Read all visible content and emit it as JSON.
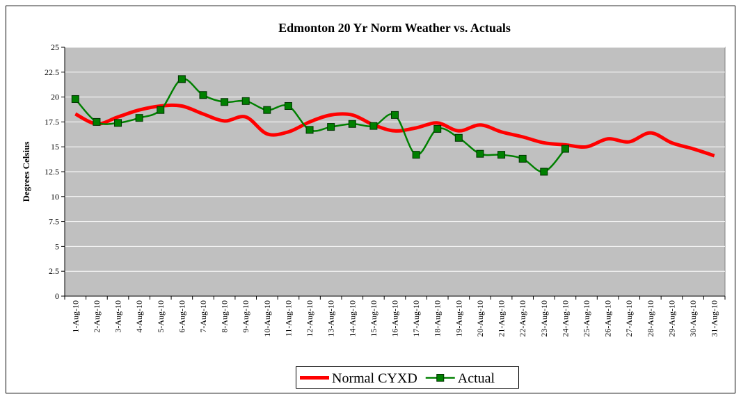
{
  "chart_data": {
    "type": "line",
    "title": "Edmonton 20 Yr Norm Weather vs. Actuals",
    "y_label": "Degrees Celsius",
    "categories": [
      "1-Aug-10",
      "2-Aug-10",
      "3-Aug-10",
      "4-Aug-10",
      "5-Aug-10",
      "6-Aug-10",
      "7-Aug-10",
      "8-Aug-10",
      "9-Aug-10",
      "10-Aug-10",
      "11-Aug-10",
      "12-Aug-10",
      "13-Aug-10",
      "14-Aug-10",
      "15-Aug-10",
      "16-Aug-10",
      "17-Aug-10",
      "18-Aug-10",
      "19-Aug-10",
      "20-Aug-10",
      "21-Aug-10",
      "22-Aug-10",
      "23-Aug-10",
      "24-Aug-10",
      "25-Aug-10",
      "26-Aug-10",
      "27-Aug-10",
      "28-Aug-10",
      "29-Aug-10",
      "30-Aug-10",
      "31-Aug-10"
    ],
    "series": [
      {
        "name": "Normal CYXD",
        "color": "#ff0000",
        "values": [
          18.3,
          17.3,
          18.0,
          18.7,
          19.1,
          19.1,
          18.3,
          17.6,
          18.0,
          16.3,
          16.5,
          17.5,
          18.2,
          18.2,
          17.2,
          16.6,
          16.9,
          17.4,
          16.6,
          17.2,
          16.5,
          16.0,
          15.4,
          15.2,
          15.0,
          15.8,
          15.5,
          16.4,
          15.4,
          14.8,
          14.1
        ]
      },
      {
        "name": "Actual",
        "color": "#008000",
        "marker": "square",
        "values": [
          19.8,
          17.5,
          17.4,
          17.9,
          18.7,
          21.8,
          20.2,
          19.5,
          19.6,
          18.7,
          19.1,
          16.7,
          17.0,
          17.3,
          17.1,
          18.2,
          14.2,
          16.8,
          15.9,
          14.3,
          14.2,
          13.8,
          12.5,
          14.8,
          null,
          null,
          null,
          null,
          null,
          null,
          null
        ]
      }
    ],
    "ylim": [
      0,
      25
    ],
    "yticks": [
      0,
      2.5,
      5,
      7.5,
      10,
      12.5,
      15,
      17.5,
      20,
      22.5,
      25
    ],
    "grid": true,
    "legend": "bottom"
  }
}
